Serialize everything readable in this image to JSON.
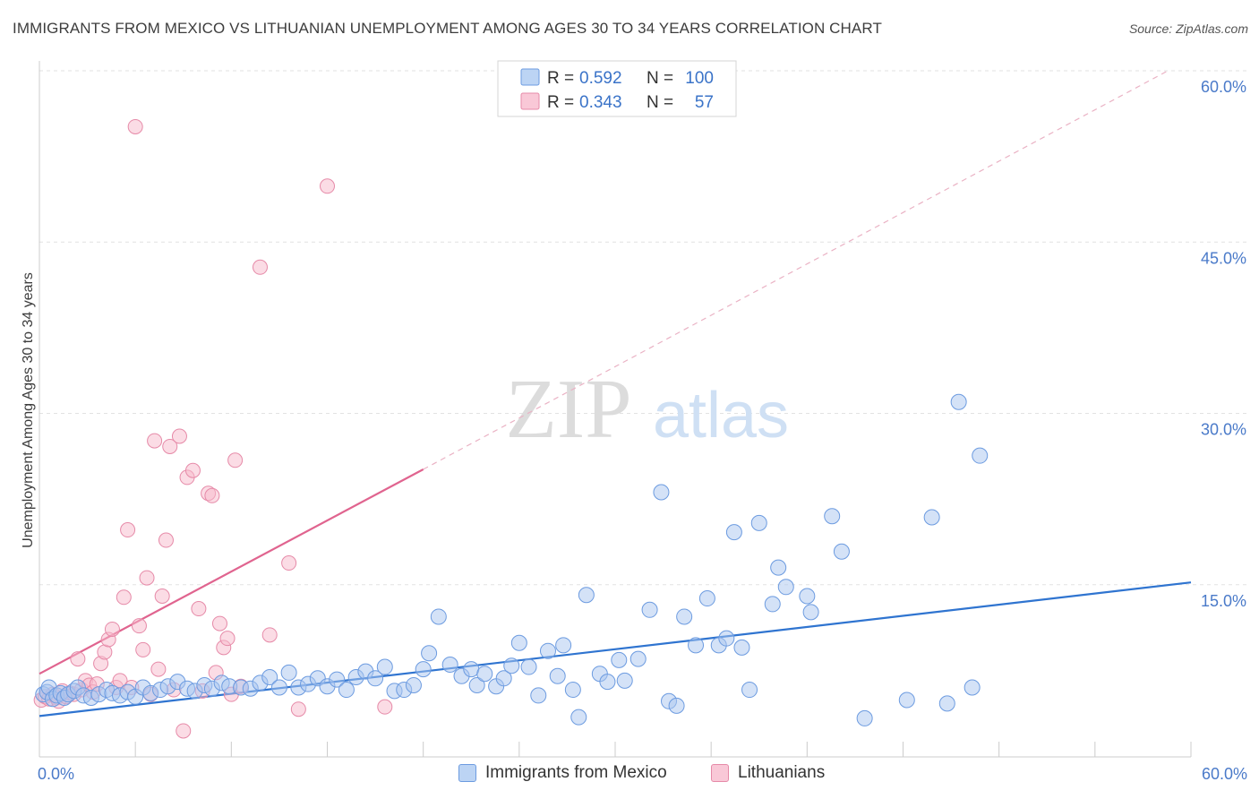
{
  "header": {
    "title": "IMMIGRANTS FROM MEXICO VS LITHUANIAN UNEMPLOYMENT AMONG AGES 30 TO 34 YEARS CORRELATION CHART",
    "source": "Source: ZipAtlas.com"
  },
  "watermark": {
    "zip": "ZIP",
    "atlas": "atlas"
  },
  "legend": {
    "rows": [
      {
        "r_label": "R =",
        "r_value": "0.592",
        "n_label": "N =",
        "n_value": "100"
      },
      {
        "r_label": "R =",
        "r_value": "0.343",
        "n_label": "N =",
        "n_value": "57"
      }
    ]
  },
  "bottom_legend": {
    "mexico": "Immigrants from Mexico",
    "lithuanians": "Lithuanians"
  },
  "chart_data": {
    "type": "scatter",
    "title": "IMMIGRANTS FROM MEXICO VS LITHUANIAN UNEMPLOYMENT AMONG AGES 30 TO 34 YEARS CORRELATION CHART",
    "xlabel": "",
    "ylabel": "Unemployment Among Ages 30 to 34 years",
    "xlim": [
      0,
      60
    ],
    "ylim": [
      0,
      60
    ],
    "x_tick_labels": [
      "0.0%",
      "60.0%"
    ],
    "y_tick_labels": [
      "15.0%",
      "30.0%",
      "45.0%",
      "60.0%"
    ],
    "y_ticks": [
      15,
      30,
      45,
      60
    ],
    "grid": "horizontal dashed",
    "legend_position": "top-center",
    "colors": {
      "mexico_fill": "#a9c6f0",
      "mexico_edge": "#6c9be0",
      "mexico_line": "#2f74d0",
      "lithuanians_fill": "#f7b9cc",
      "lithuanians_edge": "#e68aa8",
      "lithuanians_line": "#e0648f",
      "tick_label": "#4a7ac9"
    },
    "series": [
      {
        "name": "Immigrants from Mexico",
        "r": 0.592,
        "n": 100,
        "trend": {
          "x": [
            0,
            60
          ],
          "y": [
            3.5,
            15.2
          ],
          "style": "solid"
        },
        "points": [
          [
            0.2,
            5.4
          ],
          [
            0.4,
            5.6
          ],
          [
            0.5,
            6.0
          ],
          [
            0.7,
            5.0
          ],
          [
            0.9,
            5.3
          ],
          [
            1.1,
            5.5
          ],
          [
            1.3,
            5.1
          ],
          [
            1.5,
            5.4
          ],
          [
            1.8,
            5.7
          ],
          [
            2.0,
            6.0
          ],
          [
            2.3,
            5.3
          ],
          [
            2.7,
            5.1
          ],
          [
            3.1,
            5.4
          ],
          [
            3.5,
            5.8
          ],
          [
            3.8,
            5.5
          ],
          [
            4.2,
            5.3
          ],
          [
            4.6,
            5.6
          ],
          [
            5.0,
            5.2
          ],
          [
            5.4,
            6.0
          ],
          [
            5.8,
            5.5
          ],
          [
            6.3,
            5.8
          ],
          [
            6.7,
            6.1
          ],
          [
            7.2,
            6.5
          ],
          [
            7.7,
            5.9
          ],
          [
            8.1,
            5.7
          ],
          [
            8.6,
            6.2
          ],
          [
            9.0,
            5.9
          ],
          [
            9.5,
            6.4
          ],
          [
            9.9,
            6.1
          ],
          [
            10.5,
            6.0
          ],
          [
            11.0,
            5.9
          ],
          [
            11.5,
            6.4
          ],
          [
            12.0,
            6.9
          ],
          [
            12.5,
            6.0
          ],
          [
            13.0,
            7.3
          ],
          [
            13.5,
            6.0
          ],
          [
            14.0,
            6.3
          ],
          [
            14.5,
            6.8
          ],
          [
            15.0,
            6.1
          ],
          [
            15.5,
            6.7
          ],
          [
            16.0,
            5.8
          ],
          [
            16.5,
            6.9
          ],
          [
            17.0,
            7.4
          ],
          [
            17.5,
            6.8
          ],
          [
            18.0,
            7.8
          ],
          [
            18.5,
            5.7
          ],
          [
            19.0,
            5.8
          ],
          [
            19.5,
            6.2
          ],
          [
            20.0,
            7.6
          ],
          [
            20.3,
            9.0
          ],
          [
            20.8,
            12.2
          ],
          [
            21.4,
            8.0
          ],
          [
            22.0,
            7.0
          ],
          [
            22.5,
            7.6
          ],
          [
            22.8,
            6.2
          ],
          [
            23.2,
            7.2
          ],
          [
            23.8,
            6.1
          ],
          [
            24.2,
            6.8
          ],
          [
            24.6,
            7.9
          ],
          [
            25.0,
            9.9
          ],
          [
            25.5,
            7.8
          ],
          [
            26.0,
            5.3
          ],
          [
            26.5,
            9.2
          ],
          [
            27.0,
            7.0
          ],
          [
            27.3,
            9.7
          ],
          [
            27.8,
            5.8
          ],
          [
            28.1,
            3.4
          ],
          [
            28.5,
            14.1
          ],
          [
            29.2,
            7.2
          ],
          [
            29.6,
            6.5
          ],
          [
            30.2,
            8.4
          ],
          [
            30.5,
            6.6
          ],
          [
            31.2,
            8.5
          ],
          [
            31.8,
            12.8
          ],
          [
            32.4,
            23.1
          ],
          [
            32.8,
            4.8
          ],
          [
            33.2,
            4.4
          ],
          [
            33.6,
            12.2
          ],
          [
            34.2,
            9.7
          ],
          [
            34.8,
            13.8
          ],
          [
            35.4,
            9.7
          ],
          [
            35.8,
            10.3
          ],
          [
            36.2,
            19.6
          ],
          [
            36.6,
            9.5
          ],
          [
            37.0,
            5.8
          ],
          [
            37.5,
            20.4
          ],
          [
            38.2,
            13.3
          ],
          [
            38.5,
            16.5
          ],
          [
            38.9,
            14.8
          ],
          [
            40.2,
            12.6
          ],
          [
            40.0,
            14.0
          ],
          [
            41.3,
            21.0
          ],
          [
            41.8,
            17.9
          ],
          [
            43.0,
            3.3
          ],
          [
            45.2,
            4.9
          ],
          [
            46.5,
            20.9
          ],
          [
            47.3,
            4.6
          ],
          [
            47.9,
            31.0
          ],
          [
            48.6,
            6.0
          ],
          [
            49.0,
            26.3
          ]
        ]
      },
      {
        "name": "Lithuanians",
        "r": 0.343,
        "n": 57,
        "trend": {
          "x": [
            0,
            20.0
          ],
          "y": [
            7.2,
            25.1
          ],
          "style": "solid"
        },
        "trend_extension": {
          "x": [
            20.0,
            58.8
          ],
          "y": [
            25.1,
            60.0
          ],
          "style": "dashed"
        },
        "points": [
          [
            0.1,
            4.9
          ],
          [
            0.3,
            5.2
          ],
          [
            0.5,
            5.0
          ],
          [
            0.7,
            5.4
          ],
          [
            0.9,
            5.1
          ],
          [
            1.0,
            4.8
          ],
          [
            1.2,
            5.7
          ],
          [
            1.4,
            5.2
          ],
          [
            1.6,
            5.5
          ],
          [
            1.8,
            5.4
          ],
          [
            2.0,
            8.5
          ],
          [
            2.2,
            5.8
          ],
          [
            2.4,
            6.6
          ],
          [
            2.6,
            6.2
          ],
          [
            2.8,
            5.6
          ],
          [
            3.0,
            6.3
          ],
          [
            3.2,
            8.1
          ],
          [
            3.4,
            9.1
          ],
          [
            3.6,
            10.2
          ],
          [
            3.8,
            11.1
          ],
          [
            4.0,
            6.0
          ],
          [
            4.2,
            6.6
          ],
          [
            4.4,
            13.9
          ],
          [
            4.6,
            19.8
          ],
          [
            4.8,
            6.0
          ],
          [
            5.0,
            55.1
          ],
          [
            5.2,
            11.4
          ],
          [
            5.4,
            9.3
          ],
          [
            5.6,
            15.6
          ],
          [
            5.8,
            5.4
          ],
          [
            6.0,
            27.6
          ],
          [
            6.2,
            7.6
          ],
          [
            6.4,
            14.0
          ],
          [
            6.6,
            18.9
          ],
          [
            6.8,
            27.1
          ],
          [
            7.0,
            5.8
          ],
          [
            7.3,
            28.0
          ],
          [
            7.5,
            2.2
          ],
          [
            7.7,
            24.4
          ],
          [
            8.0,
            25.0
          ],
          [
            8.3,
            12.9
          ],
          [
            8.5,
            5.7
          ],
          [
            8.8,
            23.0
          ],
          [
            9.0,
            22.8
          ],
          [
            9.2,
            7.3
          ],
          [
            9.4,
            11.6
          ],
          [
            9.6,
            9.5
          ],
          [
            9.8,
            10.3
          ],
          [
            10.0,
            5.4
          ],
          [
            10.2,
            25.9
          ],
          [
            10.5,
            6.1
          ],
          [
            11.5,
            42.8
          ],
          [
            12.0,
            10.6
          ],
          [
            13.0,
            16.9
          ],
          [
            13.5,
            4.1
          ],
          [
            15.0,
            49.9
          ],
          [
            18.0,
            4.3
          ]
        ]
      }
    ]
  }
}
